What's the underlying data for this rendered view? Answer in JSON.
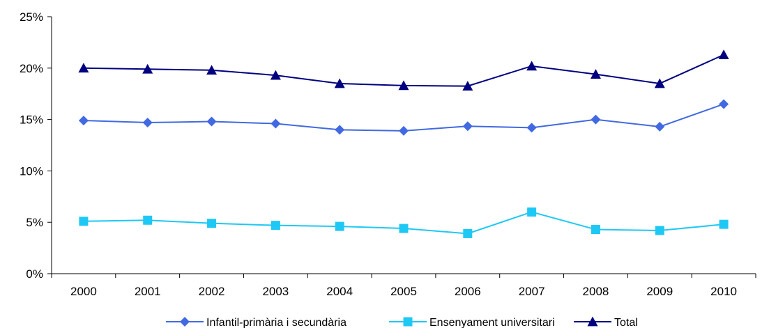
{
  "chart_data": {
    "type": "line",
    "title": "",
    "xlabel": "",
    "ylabel": "",
    "categories": [
      "2000",
      "2001",
      "2002",
      "2003",
      "2004",
      "2005",
      "2006",
      "2007",
      "2008",
      "2009",
      "2010"
    ],
    "ylim": [
      0,
      25
    ],
    "yticks": [
      0,
      5,
      10,
      15,
      20,
      25
    ],
    "ytick_labels": [
      "0%",
      "5%",
      "10%",
      "15%",
      "20%",
      "25%"
    ],
    "grid": false,
    "legend_position": "bottom",
    "series": [
      {
        "name": "Infantil-primària i secundària",
        "color": "#4169E1",
        "marker": "diamond",
        "values": [
          14.9,
          14.7,
          14.8,
          14.6,
          14.0,
          13.9,
          14.35,
          14.2,
          15.0,
          14.3,
          16.5
        ]
      },
      {
        "name": "Ensenyament universitari",
        "color": "#1EC8F5",
        "marker": "square",
        "values": [
          5.1,
          5.2,
          4.9,
          4.7,
          4.6,
          4.4,
          3.9,
          6.0,
          4.3,
          4.2,
          4.8
        ]
      },
      {
        "name": "Total",
        "color": "#000080",
        "marker": "triangle",
        "values": [
          20.0,
          19.9,
          19.8,
          19.3,
          18.5,
          18.3,
          18.25,
          20.2,
          19.4,
          18.5,
          21.3
        ]
      }
    ]
  }
}
